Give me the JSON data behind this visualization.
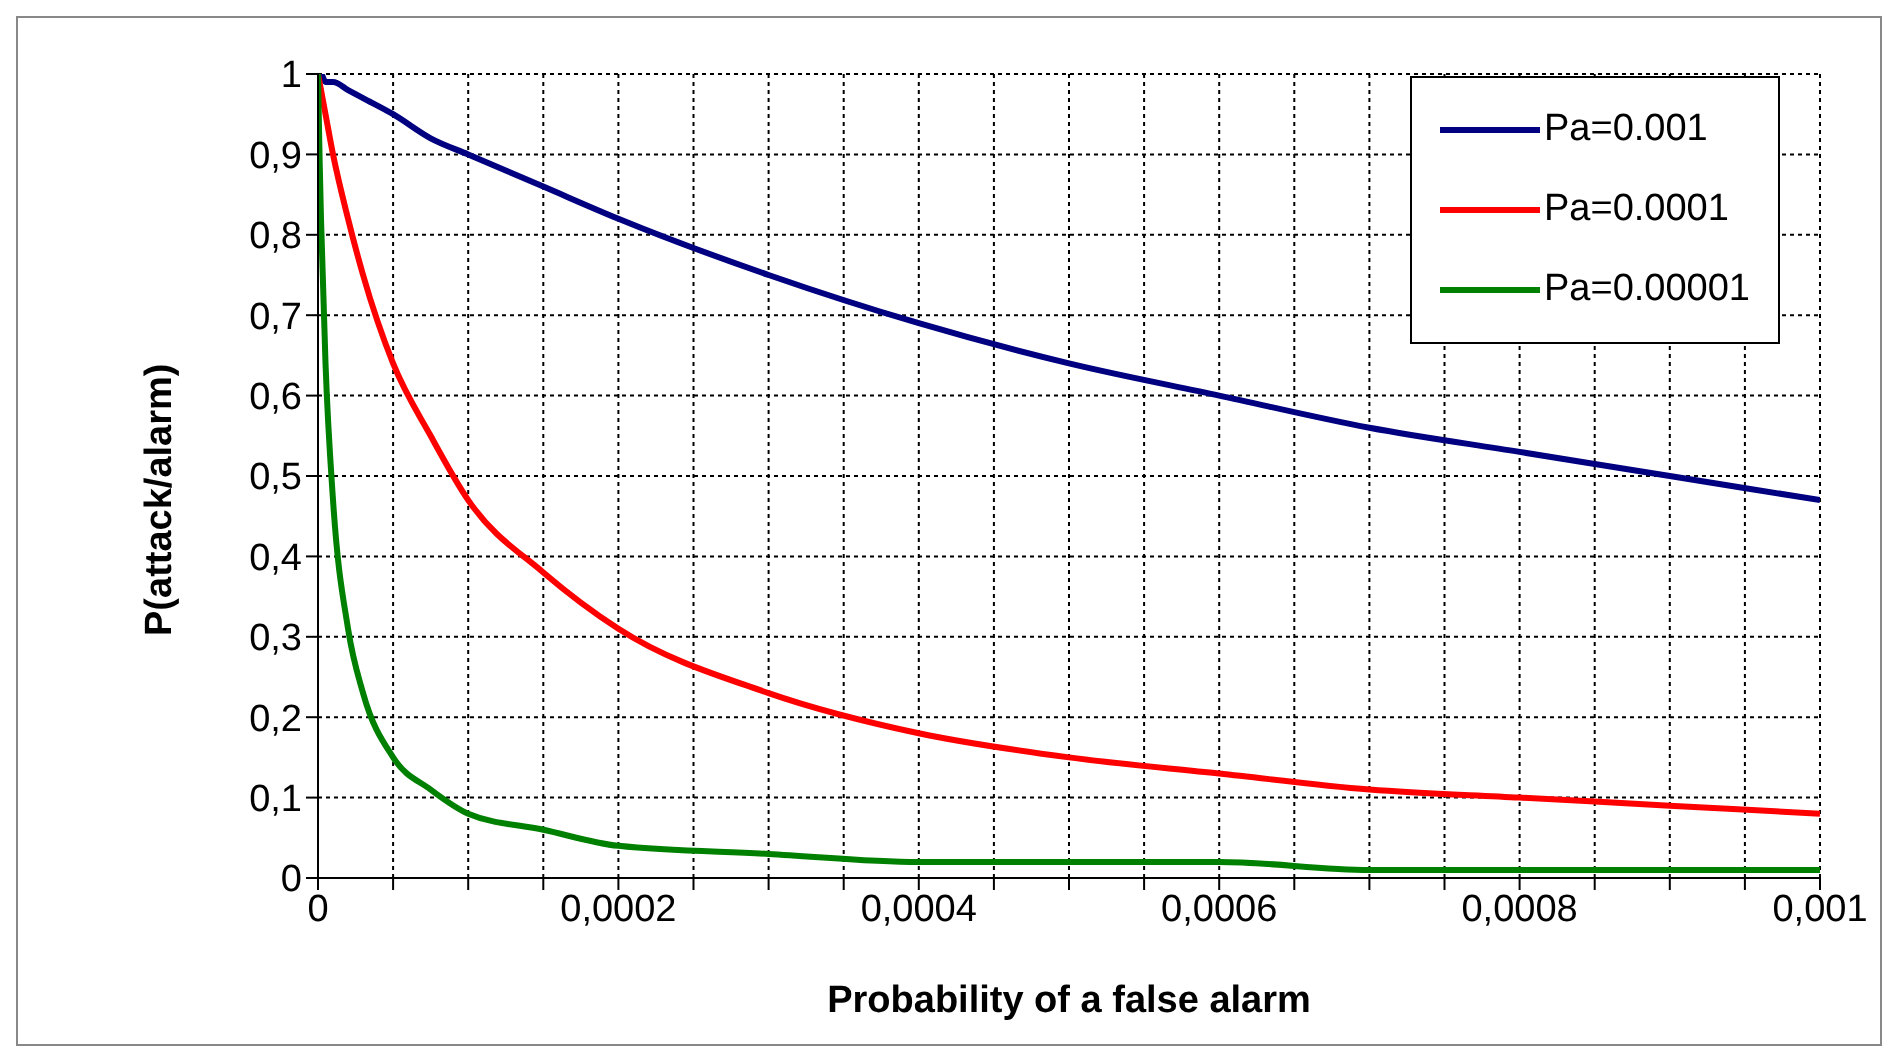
{
  "chart_data": {
    "type": "line",
    "xlabel": "Probability of a false alarm",
    "ylabel": "P(attack/alarm)",
    "x": [
      0,
      1e-06,
      2e-06,
      5e-06,
      1e-05,
      2e-05,
      3e-05,
      5e-05,
      7.5e-05,
      0.0001,
      0.00015,
      0.0002,
      0.0003,
      0.0004,
      0.0005,
      0.0006,
      0.0007,
      0.0008,
      0.0009,
      0.001
    ],
    "series": [
      {
        "name": "Pa=0.001",
        "color": "#000080",
        "values": [
          1,
          1,
          1,
          0.99,
          0.99,
          0.98,
          0.97,
          0.95,
          0.92,
          0.9,
          0.86,
          0.82,
          0.75,
          0.69,
          0.64,
          0.6,
          0.56,
          0.53,
          0.5,
          0.47
        ]
      },
      {
        "name": "Pa=0.0001",
        "color": "#ff0000",
        "values": [
          1,
          0.99,
          0.98,
          0.95,
          0.9,
          0.82,
          0.75,
          0.64,
          0.55,
          0.47,
          0.38,
          0.31,
          0.23,
          0.18,
          0.15,
          0.13,
          0.11,
          0.1,
          0.09,
          0.08
        ]
      },
      {
        "name": "Pa=0.00001",
        "color": "#008000",
        "values": [
          1,
          0.9,
          0.82,
          0.64,
          0.47,
          0.31,
          0.23,
          0.15,
          0.11,
          0.08,
          0.06,
          0.04,
          0.03,
          0.02,
          0.02,
          0.02,
          0.01,
          0.01,
          0.01,
          0.01
        ]
      }
    ],
    "xlim": [
      0,
      0.001
    ],
    "xticks": [
      0,
      {
        "value": 5e-05,
        "label": null
      },
      {
        "value": 0.0001,
        "label": null
      },
      {
        "value": 0.00015,
        "label": null
      },
      {
        "value": 0.0002,
        "label": "0,0002"
      },
      {
        "value": 0.00025,
        "label": null
      },
      {
        "value": 0.0003,
        "label": null
      },
      {
        "value": 0.00035,
        "label": null
      },
      {
        "value": 0.0004,
        "label": "0,0004"
      },
      {
        "value": 0.00045,
        "label": null
      },
      {
        "value": 0.0005,
        "label": null
      },
      {
        "value": 0.00055,
        "label": null
      },
      {
        "value": 0.0006,
        "label": "0,0006"
      },
      {
        "value": 0.00065,
        "label": null
      },
      {
        "value": 0.0007,
        "label": null
      },
      {
        "value": 0.00075,
        "label": null
      },
      {
        "value": 0.0008,
        "label": "0,0008"
      },
      {
        "value": 0.00085,
        "label": null
      },
      {
        "value": 0.0009,
        "label": null
      },
      {
        "value": 0.00095,
        "label": null
      },
      {
        "value": 0.001,
        "label": "0,001"
      }
    ],
    "ylim": [
      0,
      1
    ],
    "yticks": [
      0,
      {
        "value": 0.1,
        "label": "0,1"
      },
      {
        "value": 0.2,
        "label": "0,2"
      },
      {
        "value": 0.3,
        "label": "0,3"
      },
      {
        "value": 0.4,
        "label": "0,4"
      },
      {
        "value": 0.5,
        "label": "0,5"
      },
      {
        "value": 0.6,
        "label": "0,6"
      },
      {
        "value": 0.7,
        "label": "0,7"
      },
      {
        "value": 0.8,
        "label": "0,8"
      },
      {
        "value": 0.9,
        "label": "0,9"
      },
      1
    ],
    "grid": true,
    "legend": "top right",
    "marker": "none",
    "line_style": "solid"
  }
}
